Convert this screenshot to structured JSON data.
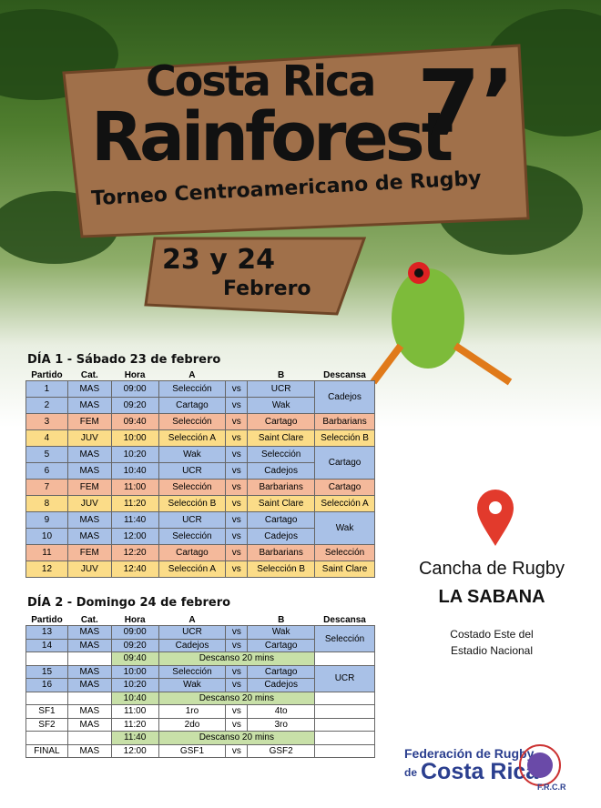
{
  "header": {
    "line1": "Costa Rica",
    "line2": "Rainforest",
    "seven": "7’",
    "subtitle": "Torneo Centroamericano de Rugby",
    "dates": "23 y 24",
    "month": "Febrero"
  },
  "columns": [
    "Partido",
    "Cat.",
    "Hora",
    "A",
    "B",
    "Descansa"
  ],
  "day1": {
    "title": "DÍA 1 - Sábado 23 de febrero",
    "rows": [
      [
        "1",
        "MAS",
        "09:00",
        "Selección",
        "vs",
        "UCR",
        "Cadejos"
      ],
      [
        "2",
        "MAS",
        "09:20",
        "Cartago",
        "vs",
        "Wak"
      ],
      [
        "3",
        "FEM",
        "09:40",
        "Selección",
        "vs",
        "Cartago",
        "Barbarians"
      ],
      [
        "4",
        "JUV",
        "10:00",
        "Selección A",
        "vs",
        "Saint Clare",
        "Selección B"
      ],
      [
        "5",
        "MAS",
        "10:20",
        "Wak",
        "vs",
        "Selección",
        "Cartago"
      ],
      [
        "6",
        "MAS",
        "10:40",
        "UCR",
        "vs",
        "Cadejos"
      ],
      [
        "7",
        "FEM",
        "11:00",
        "Selección",
        "vs",
        "Barbarians",
        "Cartago"
      ],
      [
        "8",
        "JUV",
        "11:20",
        "Selección B",
        "vs",
        "Saint Clare",
        "Selección A"
      ],
      [
        "9",
        "MAS",
        "11:40",
        "UCR",
        "vs",
        "Cartago",
        "Wak"
      ],
      [
        "10",
        "MAS",
        "12:00",
        "Selección",
        "vs",
        "Cadejos"
      ],
      [
        "11",
        "FEM",
        "12:20",
        "Cartago",
        "vs",
        "Barbarians",
        "Selección"
      ],
      [
        "12",
        "JUV",
        "12:40",
        "Selección A",
        "vs",
        "Selección B",
        "Saint Clare"
      ]
    ]
  },
  "day2": {
    "title": "DÍA 2 - Domingo 24 de febrero",
    "rows": [
      [
        "13",
        "MAS",
        "09:00",
        "UCR",
        "vs",
        "Wak",
        "Selección"
      ],
      [
        "14",
        "MAS",
        "09:20",
        "Cadejos",
        "vs",
        "Cartago"
      ],
      [
        "09:40",
        "Descanso 20 mins"
      ],
      [
        "15",
        "MAS",
        "10:00",
        "Selección",
        "vs",
        "Cartago",
        "UCR"
      ],
      [
        "16",
        "MAS",
        "10:20",
        "Wak",
        "vs",
        "Cadejos"
      ],
      [
        "10:40",
        "Descanso 20 mins"
      ],
      [
        "SF1",
        "MAS",
        "11:00",
        "1ro",
        "vs",
        "4to"
      ],
      [
        "SF2",
        "MAS",
        "11:20",
        "2do",
        "vs",
        "3ro"
      ],
      [
        "11:40",
        "Descanso 20 mins"
      ],
      [
        "FINAL",
        "MAS",
        "12:00",
        "GSF1",
        "vs",
        "GSF2"
      ]
    ]
  },
  "venue": {
    "line1": "Cancha de Rugby",
    "line2": "LA SABANA",
    "address1": "Costado Este del",
    "address2": "Estadio Nacional"
  },
  "logo": {
    "line1": "Federación de Rugby",
    "de": "de",
    "line2": "Costa Rica",
    "initials": "F.R.C.R"
  }
}
